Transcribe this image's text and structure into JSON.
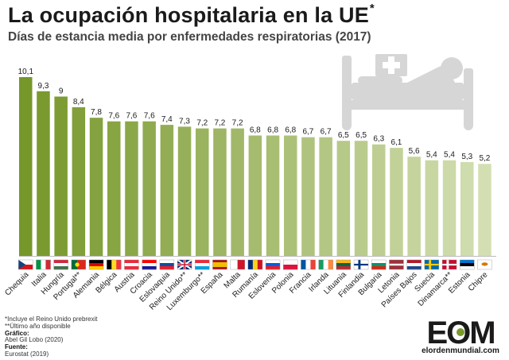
{
  "header": {
    "title": "La ocupación hospitalaria en la UE",
    "title_mark": "*",
    "subtitle": "Días de estancia media por enfermedades respiratorias (2017)"
  },
  "chart_data": {
    "type": "bar",
    "categories": [
      "Chequia",
      "Italia",
      "Hungría",
      "Portugal**",
      "Alemania",
      "Bélgica",
      "Austria",
      "Croacia",
      "Eslovaquia",
      "Reino Unido**",
      "Luxemburgo**",
      "España",
      "Malta",
      "Rumanía",
      "Eslovenia",
      "Polonia",
      "Francia",
      "Irlanda",
      "Lituania",
      "Finlandia",
      "Bulgaria",
      "Letonia",
      "Países Bajos",
      "Suecia",
      "Dinamarca**",
      "Estonia",
      "Chipre"
    ],
    "values": [
      10.1,
      9.3,
      9,
      8.4,
      7.8,
      7.6,
      7.6,
      7.6,
      7.4,
      7.3,
      7.2,
      7.2,
      7.2,
      6.8,
      6.8,
      6.8,
      6.7,
      6.7,
      6.5,
      6.5,
      6.3,
      6.1,
      5.6,
      5.4,
      5.4,
      5.3,
      5.2
    ],
    "value_labels": [
      "10,1",
      "9,3",
      "9",
      "8,4",
      "7,8",
      "7,6",
      "7,6",
      "7,6",
      "7,4",
      "7,3",
      "7,2",
      "7,2",
      "7,2",
      "6,8",
      "6,8",
      "6,8",
      "6,7",
      "6,7",
      "6,5",
      "6,5",
      "6,3",
      "6,1",
      "5,6",
      "5,4",
      "5,4",
      "5,3",
      "5,2"
    ],
    "ylim": [
      0,
      10.1
    ],
    "grid": false,
    "bar_color_start": "#76972a",
    "bar_color_end": "#d3dfb2",
    "flags": [
      "czech-flag",
      "italy-flag",
      "hungary-flag",
      "portugal-flag",
      "germany-flag",
      "belgium-flag",
      "austria-flag",
      "croatia-flag",
      "slovakia-flag",
      "uk-flag",
      "luxembourg-flag",
      "spain-flag",
      "malta-flag",
      "romania-flag",
      "slovenia-flag",
      "poland-flag",
      "france-flag",
      "ireland-flag",
      "lithuania-flag",
      "finland-flag",
      "bulgaria-flag",
      "latvia-flag",
      "netherlands-flag",
      "sweden-flag",
      "denmark-flag",
      "estonia-flag",
      "cyprus-flag"
    ],
    "illustration": "hospital-bed-icon"
  },
  "footnotes": {
    "note1": "*Incluye el Reino Unido prebrexit",
    "note2": "**Último año disponible",
    "graphic_label": "Gráfico:",
    "graphic_value": "Abel Gil Lobo (2020)",
    "source_label": "Fuente:",
    "source_value": "Eurostat (2019)"
  },
  "brand": {
    "logo": "EOM",
    "website": "elordenmundial.com"
  }
}
